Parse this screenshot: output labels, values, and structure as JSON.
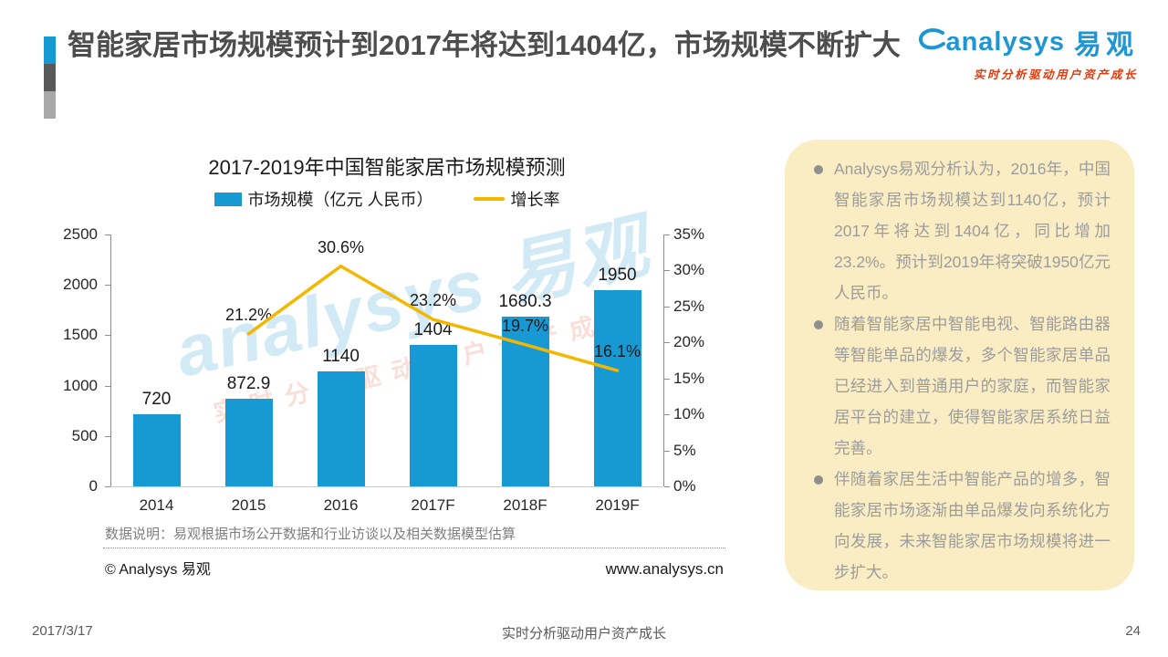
{
  "slide": {
    "header": {
      "title": "智能家居市场规模预计到2017年将达到1404亿，市场规模不断扩大",
      "accent_colors": {
        "blue": "#1799d4",
        "dark_gray": "#595959",
        "light_gray": "#a8a8a8"
      },
      "logo": {
        "name_en": "analysys",
        "name_cn": "易观",
        "tagline": "实时分析驱动用户资产成长",
        "brand_blue": "#1e96d3",
        "brand_red": "#e23a0c"
      }
    },
    "watermark": {
      "text": "analysys 易观",
      "tagline": "实时分析驱动用户资产成长"
    },
    "panel": {
      "bullets": [
        "Analysys易观分析认为，2016年，中国智能家居市场规模达到1140亿，预计2017年将达到1404亿，同比增加23.2%。预计到2019年将突破1950亿元人民币。",
        "随着智能家居中智能电视、智能路由器等智能单品的爆发，多个智能家居单品已经进入到普通用户的家庭，而智能家居平台的建立，使得智能家居系统日益完善。",
        "伴随着家居生活中智能产品的增多，智能家居市场逐渐由单品爆发向系统化方向发展，未来智能家居市场规模将进一步扩大。"
      ],
      "background": "#faedc4"
    },
    "chart_footer": {
      "note": "数据说明：易观根据市场公开数据和行业访谈以及相关数据模型估算",
      "copyright": "© Analysys 易观",
      "website": "www.analysys.cn"
    },
    "footer": {
      "date": "2017/3/17",
      "center": "实时分析驱动用户资产成长",
      "page": "24"
    }
  },
  "chart_data": {
    "type": "bar",
    "title": "2017-2019年中国智能家居市场规模预测",
    "categories": [
      "2014",
      "2015",
      "2016",
      "2017F",
      "2018F",
      "2019F"
    ],
    "series": [
      {
        "name": "市场规模（亿元 人民币）",
        "type": "bar",
        "axis": "left",
        "color": "#1799d4",
        "values": [
          720,
          872.9,
          1140,
          1404,
          1680.3,
          1950
        ],
        "labels": [
          "720",
          "872.9",
          "1140",
          "1404",
          "1680.3",
          "1950"
        ]
      },
      {
        "name": "增长率",
        "type": "line",
        "axis": "right",
        "color": "#f3b700",
        "values": [
          null,
          21.2,
          30.6,
          23.2,
          19.7,
          16.1
        ],
        "labels": [
          null,
          "21.2%",
          "30.6%",
          "23.2%",
          "19.7%",
          "16.1%"
        ]
      }
    ],
    "left_axis": {
      "min": 0,
      "max": 2500,
      "step": 500,
      "ticks": [
        "0",
        "500",
        "1000",
        "1500",
        "2000",
        "2500"
      ]
    },
    "right_axis": {
      "min": 0,
      "max": 35,
      "step": 5,
      "unit": "%",
      "ticks": [
        "0%",
        "5%",
        "10%",
        "15%",
        "20%",
        "25%",
        "30%",
        "35%"
      ]
    },
    "grid": false,
    "legend_position": "top"
  }
}
